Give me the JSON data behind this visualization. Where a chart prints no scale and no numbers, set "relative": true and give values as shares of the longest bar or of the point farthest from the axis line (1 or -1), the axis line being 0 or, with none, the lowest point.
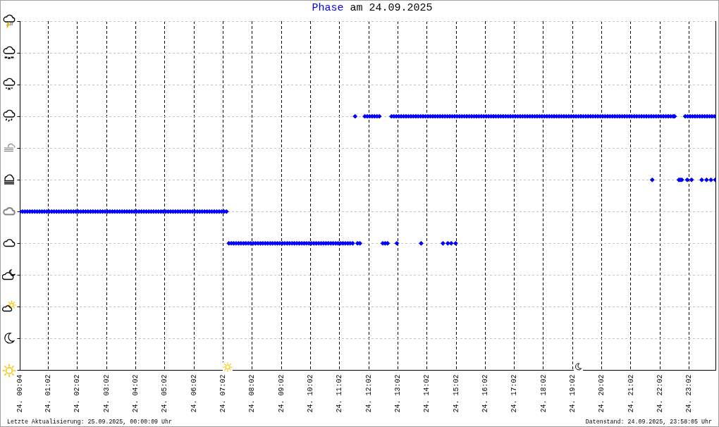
{
  "chart_data": {
    "type": "scatter",
    "title": "am 24.09.2025",
    "relative": true,
    "marker": "diamond",
    "grid": true,
    "tick_labels": "x",
    "xlim": [
      "2025-09-24T00:04",
      "2025-09-24T23:57"
    ],
    "xticks": [
      {
        "value": "2025-09-24T00:04",
        "label": "24. 00:04"
      },
      {
        "value": "2025-09-24T01:02",
        "label": "24. 01:02"
      },
      {
        "value": "2025-09-24T02:02",
        "label": "24. 02:02"
      },
      {
        "value": "2025-09-24T03:02",
        "label": "24. 03:02"
      },
      {
        "value": "2025-09-24T04:02",
        "label": "24. 04:02"
      },
      {
        "value": "2025-09-24T05:02",
        "label": "24. 05:02"
      },
      {
        "value": "2025-09-24T06:02",
        "label": "24. 06:02"
      },
      {
        "value": "2025-09-24T07:02",
        "label": "24. 07:02"
      },
      {
        "value": "2025-09-24T08:02",
        "label": "24. 08:02"
      },
      {
        "value": "2025-09-24T09:02",
        "label": "24. 09:02"
      },
      {
        "value": "2025-09-24T10:02",
        "label": "24. 10:02"
      },
      {
        "value": "2025-09-24T11:02",
        "label": "24. 11:02"
      },
      {
        "value": "2025-09-24T12:02",
        "label": "24. 12:02"
      },
      {
        "value": "2025-09-24T13:02",
        "label": "24. 13:02"
      },
      {
        "value": "2025-09-24T14:02",
        "label": "24. 14:02"
      },
      {
        "value": "2025-09-24T15:02",
        "label": "24. 15:02"
      },
      {
        "value": "2025-09-24T16:02",
        "label": "24. 16:02"
      },
      {
        "value": "2025-09-24T17:02",
        "label": "24. 17:02"
      },
      {
        "value": "2025-09-24T18:02",
        "label": "24. 18:02"
      },
      {
        "value": "2025-09-24T19:02",
        "label": "24. 19:02"
      },
      {
        "value": "2025-09-24T20:02",
        "label": "24. 20:02"
      },
      {
        "value": "2025-09-24T21:02",
        "label": "24. 21:02"
      },
      {
        "value": "2025-09-24T22:02",
        "label": "24. 22:02"
      },
      {
        "value": "2025-09-24T23:02",
        "label": "24. 23:02"
      }
    ],
    "annotations": [
      "Letzte Aktualisierung: 25.09.2025, 00:00:09 Uhr",
      "Datenstand: 24.09.2025, 23:58:05 Uhr"
    ],
    "x": [
      "2025-09-24T00:04",
      "2025-09-24T00:09",
      "2025-09-24T00:14",
      "2025-09-24T00:19",
      "2025-09-24T00:24",
      "2025-09-24T00:29",
      "2025-09-24T00:34",
      "2025-09-24T00:39",
      "2025-09-24T00:44",
      "2025-09-24T00:49",
      "2025-09-24T00:54",
      "2025-09-24T00:59",
      "2025-09-24T01:04",
      "2025-09-24T01:09",
      "2025-09-24T01:14",
      "2025-09-24T01:19",
      "2025-09-24T01:24",
      "2025-09-24T01:29",
      "2025-09-24T01:34",
      "2025-09-24T01:39",
      "2025-09-24T01:44",
      "2025-09-24T01:49",
      "2025-09-24T01:54",
      "2025-09-24T01:59",
      "2025-09-24T02:04",
      "2025-09-24T02:09",
      "2025-09-24T02:14",
      "2025-09-24T02:19",
      "2025-09-24T02:24",
      "2025-09-24T02:29",
      "2025-09-24T02:34",
      "2025-09-24T02:39",
      "2025-09-24T02:44",
      "2025-09-24T02:49",
      "2025-09-24T02:54",
      "2025-09-24T02:59",
      "2025-09-24T03:04",
      "2025-09-24T03:09",
      "2025-09-24T03:14",
      "2025-09-24T03:19",
      "2025-09-24T03:24",
      "2025-09-24T03:29",
      "2025-09-24T03:34",
      "2025-09-24T03:39",
      "2025-09-24T03:44",
      "2025-09-24T03:49",
      "2025-09-24T03:54",
      "2025-09-24T03:59",
      "2025-09-24T04:04",
      "2025-09-24T04:09",
      "2025-09-24T04:14",
      "2025-09-24T04:19",
      "2025-09-24T04:24",
      "2025-09-24T04:29",
      "2025-09-24T04:34",
      "2025-09-24T04:39",
      "2025-09-24T04:44",
      "2025-09-24T04:49",
      "2025-09-24T04:54",
      "2025-09-24T04:59",
      "2025-09-24T05:04",
      "2025-09-24T05:09",
      "2025-09-24T05:14",
      "2025-09-24T05:19",
      "2025-09-24T05:24",
      "2025-09-24T05:29",
      "2025-09-24T05:34",
      "2025-09-24T05:39",
      "2025-09-24T05:44",
      "2025-09-24T05:49",
      "2025-09-24T05:54",
      "2025-09-24T05:59",
      "2025-09-24T06:04",
      "2025-09-24T06:09",
      "2025-09-24T06:14",
      "2025-09-24T06:19",
      "2025-09-24T06:24",
      "2025-09-24T06:29",
      "2025-09-24T06:34",
      "2025-09-24T06:39",
      "2025-09-24T06:44",
      "2025-09-24T06:49",
      "2025-09-24T06:54",
      "2025-09-24T06:59",
      "2025-09-24T07:04",
      "2025-09-24T07:09",
      "2025-09-24T07:14",
      "2025-09-24T07:19",
      "2025-09-24T07:24",
      "2025-09-24T07:29",
      "2025-09-24T07:34",
      "2025-09-24T07:39",
      "2025-09-24T07:44",
      "2025-09-24T07:49",
      "2025-09-24T07:54",
      "2025-09-24T07:59",
      "2025-09-24T08:04",
      "2025-09-24T08:09",
      "2025-09-24T08:14",
      "2025-09-24T08:19",
      "2025-09-24T08:24",
      "2025-09-24T08:29",
      "2025-09-24T08:34",
      "2025-09-24T08:39",
      "2025-09-24T08:44",
      "2025-09-24T08:49",
      "2025-09-24T08:54",
      "2025-09-24T08:59",
      "2025-09-24T09:04",
      "2025-09-24T09:09",
      "2025-09-24T09:14",
      "2025-09-24T09:19",
      "2025-09-24T09:24",
      "2025-09-24T09:29",
      "2025-09-24T09:34",
      "2025-09-24T09:39",
      "2025-09-24T09:44",
      "2025-09-24T09:49",
      "2025-09-24T09:54",
      "2025-09-24T09:59",
      "2025-09-24T10:04",
      "2025-09-24T10:09",
      "2025-09-24T10:14",
      "2025-09-24T10:19",
      "2025-09-24T10:24",
      "2025-09-24T10:29",
      "2025-09-24T10:34",
      "2025-09-24T10:39",
      "2025-09-24T10:44",
      "2025-09-24T10:49",
      "2025-09-24T10:54",
      "2025-09-24T10:59",
      "2025-09-24T11:04",
      "2025-09-24T11:09",
      "2025-09-24T11:14",
      "2025-09-24T11:19",
      "2025-09-24T11:24",
      "2025-09-24T11:29",
      "2025-09-24T11:34",
      "2025-09-24T11:39",
      "2025-09-24T11:44",
      "2025-09-24T11:54",
      "2025-09-24T11:59",
      "2025-09-24T12:04",
      "2025-09-24T12:09",
      "2025-09-24T12:14",
      "2025-09-24T12:19",
      "2025-09-24T12:24",
      "2025-09-24T12:31",
      "2025-09-24T12:36",
      "2025-09-24T12:41",
      "2025-09-24T12:49",
      "2025-09-24T12:54",
      "2025-09-24T12:59",
      "2025-09-24T13:00",
      "2025-09-24T13:04",
      "2025-09-24T13:09",
      "2025-09-24T13:14",
      "2025-09-24T13:19",
      "2025-09-24T13:24",
      "2025-09-24T13:29",
      "2025-09-24T13:34",
      "2025-09-24T13:39",
      "2025-09-24T13:44",
      "2025-09-24T13:49",
      "2025-09-24T13:50",
      "2025-09-24T13:54",
      "2025-09-24T13:59",
      "2025-09-24T14:04",
      "2025-09-24T14:09",
      "2025-09-24T14:14",
      "2025-09-24T14:19",
      "2025-09-24T14:24",
      "2025-09-24T14:29",
      "2025-09-24T14:34",
      "2025-09-24T14:35",
      "2025-09-24T14:39",
      "2025-09-24T14:44",
      "2025-09-24T14:45",
      "2025-09-24T14:49",
      "2025-09-24T14:52",
      "2025-09-24T14:54",
      "2025-09-24T14:59",
      "2025-09-24T15:01",
      "2025-09-24T15:04",
      "2025-09-24T15:09",
      "2025-09-24T15:14",
      "2025-09-24T15:19",
      "2025-09-24T15:24",
      "2025-09-24T15:29",
      "2025-09-24T15:34",
      "2025-09-24T15:39",
      "2025-09-24T15:44",
      "2025-09-24T15:49",
      "2025-09-24T15:54",
      "2025-09-24T15:59",
      "2025-09-24T16:04",
      "2025-09-24T16:09",
      "2025-09-24T16:14",
      "2025-09-24T16:19",
      "2025-09-24T16:24",
      "2025-09-24T16:29",
      "2025-09-24T16:34",
      "2025-09-24T16:39",
      "2025-09-24T16:44",
      "2025-09-24T16:49",
      "2025-09-24T16:54",
      "2025-09-24T16:59",
      "2025-09-24T17:04",
      "2025-09-24T17:09",
      "2025-09-24T17:14",
      "2025-09-24T17:19",
      "2025-09-24T17:24",
      "2025-09-24T17:29",
      "2025-09-24T17:34",
      "2025-09-24T17:39",
      "2025-09-24T17:44",
      "2025-09-24T17:49",
      "2025-09-24T17:54",
      "2025-09-24T17:59",
      "2025-09-24T18:04",
      "2025-09-24T18:09",
      "2025-09-24T18:14",
      "2025-09-24T18:19",
      "2025-09-24T18:24",
      "2025-09-24T18:29",
      "2025-09-24T18:34",
      "2025-09-24T18:39",
      "2025-09-24T18:44",
      "2025-09-24T18:49",
      "2025-09-24T18:54",
      "2025-09-24T18:59",
      "2025-09-24T19:04",
      "2025-09-24T19:09",
      "2025-09-24T19:14",
      "2025-09-24T19:19",
      "2025-09-24T19:24",
      "2025-09-24T19:29",
      "2025-09-24T19:34",
      "2025-09-24T19:39",
      "2025-09-24T19:44",
      "2025-09-24T19:49",
      "2025-09-24T19:54",
      "2025-09-24T19:59",
      "2025-09-24T20:04",
      "2025-09-24T20:09",
      "2025-09-24T20:14",
      "2025-09-24T20:19",
      "2025-09-24T20:24",
      "2025-09-24T20:29",
      "2025-09-24T20:34",
      "2025-09-24T20:39",
      "2025-09-24T20:44",
      "2025-09-24T20:49",
      "2025-09-24T20:54",
      "2025-09-24T20:59",
      "2025-09-24T21:04",
      "2025-09-24T21:09",
      "2025-09-24T21:14",
      "2025-09-24T21:19",
      "2025-09-24T21:24",
      "2025-09-24T21:29",
      "2025-09-24T21:34",
      "2025-09-24T21:39",
      "2025-09-24T21:44",
      "2025-09-24T21:46",
      "2025-09-24T21:49",
      "2025-09-24T21:54",
      "2025-09-24T21:59",
      "2025-09-24T22:04",
      "2025-09-24T22:09",
      "2025-09-24T22:14",
      "2025-09-24T22:19",
      "2025-09-24T22:24",
      "2025-09-24T22:29",
      "2025-09-24T22:32",
      "2025-09-24T22:41",
      "2025-09-24T22:44",
      "2025-09-24T22:47",
      "2025-09-24T22:54",
      "2025-09-24T22:58",
      "2025-09-24T22:59",
      "2025-09-24T23:04",
      "2025-09-24T23:07",
      "2025-09-24T23:09",
      "2025-09-24T23:14",
      "2025-09-24T23:19",
      "2025-09-24T23:24",
      "2025-09-24T23:28",
      "2025-09-24T23:29",
      "2025-09-24T23:34",
      "2025-09-24T23:38",
      "2025-09-24T23:39",
      "2025-09-24T23:44",
      "2025-09-24T23:47",
      "2025-09-24T23:49",
      "2025-09-24T23:54",
      "2025-09-24T23:56"
    ],
    "series": [
      {
        "name": "Phase",
        "color": "#0000ff",
        "values": [
          0.625,
          0.625,
          0.625,
          0.625,
          0.625,
          0.625,
          0.625,
          0.625,
          0.625,
          0.625,
          0.625,
          0.625,
          0.625,
          0.625,
          0.625,
          0.625,
          0.625,
          0.625,
          0.625,
          0.625,
          0.625,
          0.625,
          0.625,
          0.625,
          0.625,
          0.625,
          0.625,
          0.625,
          0.625,
          0.625,
          0.625,
          0.625,
          0.625,
          0.625,
          0.625,
          0.625,
          0.625,
          0.625,
          0.625,
          0.625,
          0.625,
          0.625,
          0.625,
          0.625,
          0.625,
          0.625,
          0.625,
          0.625,
          0.625,
          0.625,
          0.625,
          0.625,
          0.625,
          0.625,
          0.625,
          0.625,
          0.625,
          0.625,
          0.625,
          0.625,
          0.625,
          0.625,
          0.625,
          0.625,
          0.625,
          0.625,
          0.625,
          0.625,
          0.625,
          0.625,
          0.625,
          0.625,
          0.625,
          0.625,
          0.625,
          0.625,
          0.625,
          0.625,
          0.625,
          0.625,
          0.625,
          0.625,
          0.625,
          0.625,
          0.625,
          0.625,
          0.5,
          0.5,
          0.5,
          0.5,
          0.5,
          0.5,
          0.5,
          0.5,
          0.5,
          0.5,
          0.5,
          0.5,
          0.5,
          0.5,
          0.5,
          0.5,
          0.5,
          0.5,
          0.5,
          0.5,
          0.5,
          0.5,
          0.5,
          0.5,
          0.5,
          0.5,
          0.5,
          0.5,
          0.5,
          0.5,
          0.5,
          0.5,
          0.5,
          0.5,
          0.5,
          0.5,
          0.5,
          0.5,
          0.5,
          0.5,
          0.5,
          0.5,
          0.5,
          0.5,
          0.5,
          0.5,
          0.5,
          0.5,
          0.5,
          0.5,
          0.5,
          0.5,
          1,
          0.5,
          0.5,
          1,
          1,
          1,
          1,
          1,
          1,
          1,
          0.5,
          0.5,
          0.5,
          1,
          1,
          1,
          0.5,
          1,
          1,
          1,
          1,
          1,
          1,
          1,
          1,
          1,
          1,
          0.5,
          1,
          1,
          1,
          1,
          1,
          1,
          1,
          1,
          1,
          0.5,
          1,
          1,
          0.5,
          1,
          0.5,
          1,
          1,
          0.5,
          1,
          1,
          1,
          1,
          1,
          1,
          1,
          1,
          1,
          1,
          1,
          1,
          1,
          1,
          1,
          1,
          1,
          1,
          1,
          1,
          1,
          1,
          1,
          1,
          1,
          1,
          1,
          1,
          1,
          1,
          1,
          1,
          1,
          1,
          1,
          1,
          1,
          1,
          1,
          1,
          1,
          1,
          1,
          1,
          1,
          1,
          1,
          1,
          1,
          1,
          1,
          1,
          1,
          1,
          1,
          1,
          1,
          1,
          1,
          1,
          1,
          1,
          1,
          1,
          1,
          1,
          1,
          1,
          1,
          1,
          1,
          1,
          1,
          1,
          1,
          1,
          1,
          1,
          1,
          1,
          1,
          0.75,
          1,
          1,
          1,
          1,
          1,
          1,
          1,
          1,
          1,
          1,
          0.75,
          0.75,
          0.75,
          1,
          0.75,
          1,
          1,
          0.75,
          1,
          1,
          1,
          1,
          0.75,
          1,
          1,
          0.75,
          1,
          1,
          0.75,
          1,
          1,
          0.75
        ]
      }
    ]
  }
}
